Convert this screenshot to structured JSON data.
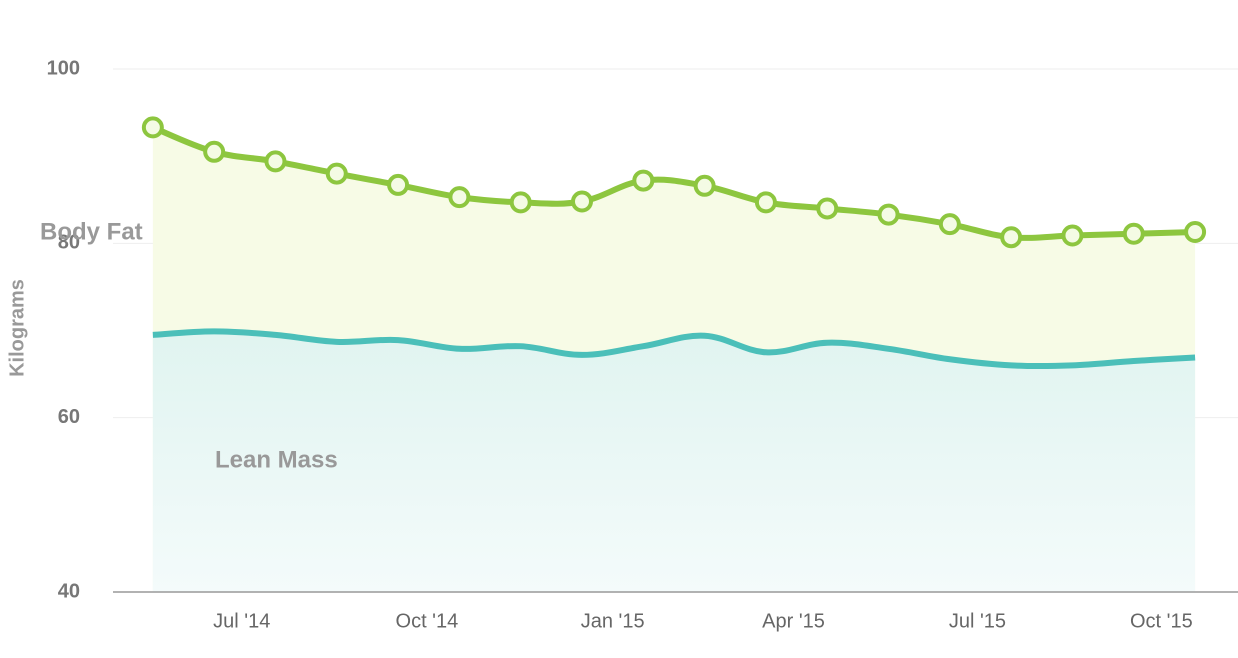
{
  "chart_data": {
    "type": "area",
    "y_label": "Kilograms",
    "x": [
      0,
      1,
      2,
      3,
      4,
      5,
      6,
      7,
      8,
      9,
      10,
      11,
      12,
      13,
      14,
      15,
      16,
      17
    ],
    "xlim": [
      -0.65,
      17.7
    ],
    "xticks": [
      {
        "value": 1.45,
        "label": "Jul '14"
      },
      {
        "value": 4.47,
        "label": "Oct '14"
      },
      {
        "value": 7.5,
        "label": "Jan '15"
      },
      {
        "value": 10.45,
        "label": "Apr '15"
      },
      {
        "value": 13.45,
        "label": "Jul '15"
      },
      {
        "value": 16.45,
        "label": "Oct '15"
      }
    ],
    "ylim": [
      40,
      100
    ],
    "yticks": [
      40,
      60,
      80,
      100
    ],
    "grid": true,
    "series": [
      {
        "name": "Body Fat",
        "color": "#8dc63f",
        "fill": "#f7fbe6",
        "markers": true,
        "values": [
          93.3,
          90.5,
          89.4,
          88.0,
          86.7,
          85.3,
          84.7,
          84.8,
          87.2,
          86.6,
          84.7,
          84.0,
          83.3,
          82.2,
          80.7,
          80.9,
          81.1,
          81.3
        ]
      },
      {
        "name": "Lean Mass",
        "color": "#4bbfb9",
        "fill": "#e4f6f3",
        "markers": false,
        "values": [
          69.5,
          69.9,
          69.5,
          68.7,
          68.9,
          67.9,
          68.2,
          67.2,
          68.2,
          69.4,
          67.5,
          68.6,
          67.9,
          66.7,
          66.0,
          66.0,
          66.5,
          66.9
        ]
      }
    ]
  }
}
